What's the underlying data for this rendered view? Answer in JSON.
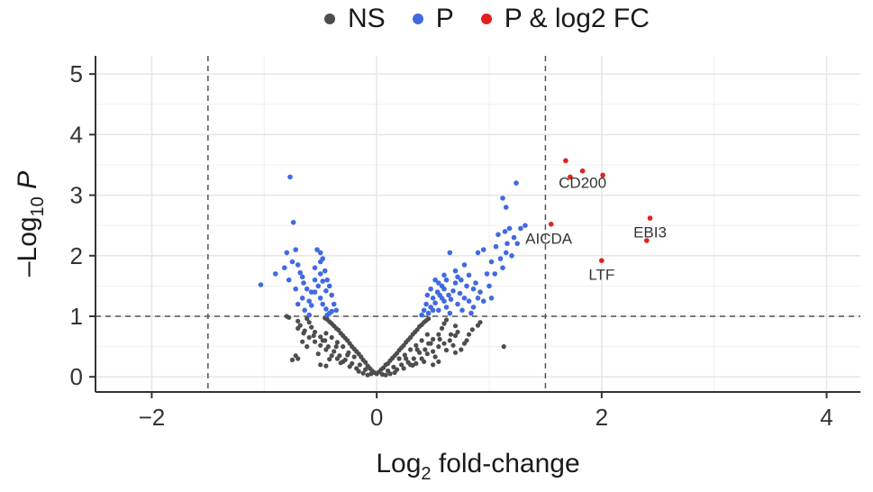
{
  "chart_data": {
    "type": "scatter",
    "title": "",
    "xlabel": {
      "main": "Log",
      "sub": "2",
      "rest": " fold-change"
    },
    "ylabel": {
      "main": "–Log",
      "sub": "10",
      "rest": " P"
    },
    "xlim": [
      -2.5,
      4.3
    ],
    "ylim": [
      -0.25,
      5.3
    ],
    "xticks": [
      -2,
      0,
      2,
      4
    ],
    "yticks": [
      0,
      1,
      2,
      3,
      4,
      5
    ],
    "xtick_labels": [
      "−2",
      "0",
      "2",
      "4"
    ],
    "ytick_labels": [
      "0",
      "1",
      "2",
      "3",
      "4",
      "5"
    ],
    "grid": true,
    "legend_position": "top",
    "cutoffs": {
      "x": [
        -1.5,
        1.5
      ],
      "y": 1.0
    },
    "legend": [
      {
        "label": "NS",
        "color": "#4d4d4d"
      },
      {
        "label": "P",
        "color": "#4169e1"
      },
      {
        "label": "P & log2 FC",
        "color": "#e0211d"
      }
    ],
    "series": [
      {
        "name": "NS",
        "color": "#4d4d4d",
        "points": [
          [
            0.0,
            0.05
          ],
          [
            0.02,
            0.08
          ],
          [
            -0.02,
            0.07
          ],
          [
            0.04,
            0.12
          ],
          [
            -0.04,
            0.1
          ],
          [
            0.06,
            0.15
          ],
          [
            -0.06,
            0.14
          ],
          [
            0.08,
            0.2
          ],
          [
            -0.08,
            0.18
          ],
          [
            0.1,
            0.22
          ],
          [
            -0.1,
            0.24
          ],
          [
            0.12,
            0.27
          ],
          [
            -0.12,
            0.28
          ],
          [
            0.14,
            0.31
          ],
          [
            -0.14,
            0.33
          ],
          [
            0.16,
            0.35
          ],
          [
            -0.16,
            0.38
          ],
          [
            0.18,
            0.39
          ],
          [
            -0.18,
            0.42
          ],
          [
            0.2,
            0.44
          ],
          [
            -0.2,
            0.46
          ],
          [
            0.22,
            0.48
          ],
          [
            -0.22,
            0.5
          ],
          [
            0.24,
            0.52
          ],
          [
            -0.24,
            0.55
          ],
          [
            0.26,
            0.57
          ],
          [
            -0.26,
            0.6
          ],
          [
            0.28,
            0.61
          ],
          [
            -0.28,
            0.64
          ],
          [
            0.3,
            0.65
          ],
          [
            -0.3,
            0.68
          ],
          [
            0.32,
            0.7
          ],
          [
            -0.32,
            0.72
          ],
          [
            0.34,
            0.74
          ],
          [
            -0.34,
            0.77
          ],
          [
            0.36,
            0.78
          ],
          [
            -0.36,
            0.8
          ],
          [
            0.38,
            0.83
          ],
          [
            -0.38,
            0.84
          ],
          [
            0.4,
            0.86
          ],
          [
            -0.4,
            0.88
          ],
          [
            0.42,
            0.9
          ],
          [
            -0.42,
            0.91
          ],
          [
            0.44,
            0.93
          ],
          [
            -0.44,
            0.95
          ],
          [
            0.46,
            0.96
          ],
          [
            -0.46,
            0.97
          ],
          [
            0.05,
            0.04
          ],
          [
            -0.05,
            0.05
          ],
          [
            0.1,
            0.1
          ],
          [
            -0.1,
            0.12
          ],
          [
            0.15,
            0.16
          ],
          [
            -0.15,
            0.2
          ],
          [
            0.2,
            0.3
          ],
          [
            -0.2,
            0.33
          ],
          [
            0.25,
            0.36
          ],
          [
            -0.25,
            0.4
          ],
          [
            0.3,
            0.45
          ],
          [
            -0.3,
            0.5
          ],
          [
            0.35,
            0.52
          ],
          [
            -0.35,
            0.57
          ],
          [
            0.4,
            0.6
          ],
          [
            -0.4,
            0.65
          ],
          [
            0.45,
            0.7
          ],
          [
            -0.45,
            0.72
          ],
          [
            0.12,
            0.05
          ],
          [
            -0.12,
            0.06
          ],
          [
            0.18,
            0.12
          ],
          [
            -0.18,
            0.14
          ],
          [
            0.22,
            0.2
          ],
          [
            -0.22,
            0.22
          ],
          [
            0.28,
            0.24
          ],
          [
            -0.28,
            0.28
          ],
          [
            0.33,
            0.3
          ],
          [
            -0.33,
            0.35
          ],
          [
            0.38,
            0.4
          ],
          [
            -0.38,
            0.42
          ],
          [
            0.43,
            0.45
          ],
          [
            -0.43,
            0.5
          ],
          [
            0.48,
            0.55
          ],
          [
            -0.48,
            0.6
          ],
          [
            0.5,
            0.62
          ],
          [
            -0.5,
            0.66
          ],
          [
            0.55,
            0.7
          ],
          [
            -0.55,
            0.74
          ],
          [
            0.58,
            0.8
          ],
          [
            -0.58,
            0.82
          ],
          [
            0.6,
            0.88
          ],
          [
            -0.6,
            0.9
          ],
          [
            0.62,
            0.94
          ],
          [
            -0.62,
            0.96
          ],
          [
            0.3,
            0.2
          ],
          [
            -0.3,
            0.25
          ],
          [
            0.35,
            0.22
          ],
          [
            -0.35,
            0.3
          ],
          [
            0.4,
            0.3
          ],
          [
            -0.4,
            0.35
          ],
          [
            0.45,
            0.38
          ],
          [
            -0.45,
            0.45
          ],
          [
            0.5,
            0.42
          ],
          [
            -0.5,
            0.52
          ],
          [
            0.55,
            0.5
          ],
          [
            -0.55,
            0.58
          ],
          [
            0.6,
            0.55
          ],
          [
            -0.6,
            0.65
          ],
          [
            0.65,
            0.6
          ],
          [
            -0.65,
            0.72
          ],
          [
            0.7,
            0.68
          ],
          [
            -0.7,
            0.8
          ],
          [
            0.72,
            0.74
          ],
          [
            -0.68,
            0.85
          ],
          [
            0.08,
            0.03
          ],
          [
            -0.08,
            0.03
          ],
          [
            0.16,
            0.07
          ],
          [
            -0.16,
            0.09
          ],
          [
            0.24,
            0.14
          ],
          [
            -0.24,
            0.17
          ],
          [
            0.32,
            0.19
          ],
          [
            -0.32,
            0.23
          ],
          [
            0.42,
            0.25
          ],
          [
            -0.42,
            0.29
          ],
          [
            0.52,
            0.33
          ],
          [
            -0.52,
            0.38
          ],
          [
            0.62,
            0.44
          ],
          [
            -0.62,
            0.5
          ],
          [
            0.68,
            0.52
          ],
          [
            -0.66,
            0.58
          ],
          [
            -0.7,
            0.3
          ],
          [
            -0.75,
            0.28
          ],
          [
            -0.72,
            0.35
          ],
          [
            -0.5,
            0.2
          ],
          [
            -0.45,
            0.18
          ],
          [
            0.5,
            0.2
          ],
          [
            0.55,
            0.25
          ],
          [
            0.7,
            0.4
          ],
          [
            0.75,
            0.45
          ],
          [
            0.78,
            0.55
          ],
          [
            0.8,
            0.6
          ],
          [
            0.82,
            0.7
          ],
          [
            0.85,
            0.78
          ],
          [
            0.9,
            0.85
          ],
          [
            0.92,
            0.9
          ],
          [
            -0.8,
            1.0
          ],
          [
            -0.78,
            0.98
          ],
          [
            1.13,
            0.5
          ],
          [
            0.26,
            0.3
          ],
          [
            -0.26,
            0.36
          ],
          [
            0.36,
            0.45
          ],
          [
            -0.36,
            0.5
          ],
          [
            0.46,
            0.55
          ],
          [
            -0.46,
            0.6
          ],
          [
            0.56,
            0.62
          ],
          [
            -0.56,
            0.68
          ],
          [
            0.66,
            0.7
          ],
          [
            -0.64,
            0.76
          ],
          [
            0.7,
            0.84
          ],
          [
            -0.7,
            0.92
          ]
        ]
      },
      {
        "name": "P",
        "color": "#4169e1",
        "points": [
          [
            -1.03,
            1.52
          ],
          [
            -0.9,
            1.7
          ],
          [
            -0.82,
            1.8
          ],
          [
            -0.78,
            1.6
          ],
          [
            -0.75,
            1.9
          ],
          [
            -0.72,
            2.1
          ],
          [
            -0.8,
            2.05
          ],
          [
            -0.7,
            1.85
          ],
          [
            -0.68,
            1.72
          ],
          [
            -0.65,
            1.55
          ],
          [
            -0.72,
            1.45
          ],
          [
            -0.66,
            1.3
          ],
          [
            -0.7,
            1.2
          ],
          [
            -0.64,
            1.1
          ],
          [
            -0.6,
            1.02
          ],
          [
            -0.58,
            1.4
          ],
          [
            -0.55,
            1.6
          ],
          [
            -0.55,
            1.8
          ],
          [
            -0.5,
            1.7
          ],
          [
            -0.52,
            1.5
          ],
          [
            -0.5,
            1.3
          ],
          [
            -0.48,
            1.2
          ],
          [
            -0.45,
            1.12
          ],
          [
            -0.42,
            1.05
          ],
          [
            -0.4,
            1.08
          ],
          [
            -0.44,
            1.02
          ],
          [
            -0.5,
            1.9
          ],
          [
            -0.53,
            2.1
          ],
          [
            -0.5,
            2.05
          ],
          [
            -0.48,
            1.95
          ],
          [
            -0.46,
            1.75
          ],
          [
            -0.44,
            1.6
          ],
          [
            -0.42,
            1.5
          ],
          [
            -0.4,
            1.35
          ],
          [
            -0.38,
            1.2
          ],
          [
            -0.36,
            1.1
          ],
          [
            -0.6,
            1.25
          ],
          [
            -0.62,
            1.45
          ],
          [
            -0.66,
            1.65
          ],
          [
            -0.74,
            2.55
          ],
          [
            -0.77,
            3.3
          ],
          [
            -0.55,
            1.4
          ],
          [
            -0.45,
            1.42
          ],
          [
            -0.48,
            1.58
          ],
          [
            -0.58,
            1.18
          ],
          [
            0.4,
            1.02
          ],
          [
            0.42,
            1.1
          ],
          [
            0.44,
            1.2
          ],
          [
            0.46,
            1.05
          ],
          [
            0.48,
            1.15
          ],
          [
            0.5,
            1.3
          ],
          [
            0.52,
            1.22
          ],
          [
            0.54,
            1.4
          ],
          [
            0.55,
            1.1
          ],
          [
            0.56,
            1.35
          ],
          [
            0.58,
            1.5
          ],
          [
            0.6,
            1.25
          ],
          [
            0.6,
            1.45
          ],
          [
            0.62,
            1.6
          ],
          [
            0.62,
            1.15
          ],
          [
            0.64,
            1.35
          ],
          [
            0.65,
            1.05
          ],
          [
            0.66,
            1.28
          ],
          [
            0.68,
            1.42
          ],
          [
            0.7,
            1.55
          ],
          [
            0.72,
            1.2
          ],
          [
            0.72,
            1.65
          ],
          [
            0.74,
            1.38
          ],
          [
            0.76,
            1.1
          ],
          [
            0.78,
            1.3
          ],
          [
            0.8,
            1.5
          ],
          [
            0.82,
            1.25
          ],
          [
            0.84,
            1.05
          ],
          [
            0.86,
            1.15
          ],
          [
            0.88,
            1.55
          ],
          [
            0.9,
            1.3
          ],
          [
            0.92,
            1.4
          ],
          [
            0.95,
            1.25
          ],
          [
            0.98,
            1.7
          ],
          [
            1.0,
            1.5
          ],
          [
            1.02,
            1.9
          ],
          [
            1.05,
            1.7
          ],
          [
            1.06,
            2.15
          ],
          [
            1.08,
            2.35
          ],
          [
            1.1,
            1.95
          ],
          [
            1.12,
            1.8
          ],
          [
            1.14,
            2.4
          ],
          [
            1.15,
            2.05
          ],
          [
            1.16,
            2.2
          ],
          [
            1.18,
            2.45
          ],
          [
            1.2,
            2.0
          ],
          [
            1.22,
            2.3
          ],
          [
            1.25,
            2.2
          ],
          [
            1.28,
            2.45
          ],
          [
            1.32,
            2.5
          ],
          [
            1.12,
            2.95
          ],
          [
            1.15,
            2.8
          ],
          [
            1.24,
            3.2
          ],
          [
            0.9,
            2.05
          ],
          [
            0.95,
            2.1
          ],
          [
            0.65,
            2.05
          ],
          [
            0.7,
            1.75
          ],
          [
            0.75,
            1.6
          ],
          [
            0.78,
            1.85
          ],
          [
            0.6,
            1.68
          ],
          [
            0.58,
            1.3
          ],
          [
            0.55,
            1.55
          ],
          [
            0.52,
            1.6
          ],
          [
            0.48,
            1.45
          ],
          [
            0.5,
            1.1
          ],
          [
            0.45,
            1.35
          ],
          [
            0.86,
            1.45
          ],
          [
            1.02,
            1.3
          ],
          [
            0.82,
            1.68
          ]
        ]
      },
      {
        "name": "P & log2 FC",
        "color": "#e0211d",
        "points": [
          [
            1.68,
            3.57
          ],
          [
            1.83,
            3.4
          ],
          [
            2.01,
            3.33
          ],
          [
            1.72,
            3.3
          ],
          [
            2.43,
            2.62
          ],
          [
            1.55,
            2.52
          ],
          [
            2.0,
            1.92
          ],
          [
            2.4,
            2.25
          ]
        ]
      }
    ],
    "annotations": [
      {
        "text": "CD200",
        "x": 1.83,
        "y": 3.12
      },
      {
        "text": "AICDA",
        "x": 1.53,
        "y": 2.2
      },
      {
        "text": "EBI3",
        "x": 2.43,
        "y": 2.3
      },
      {
        "text": "LTF",
        "x": 2.0,
        "y": 1.6
      }
    ]
  }
}
